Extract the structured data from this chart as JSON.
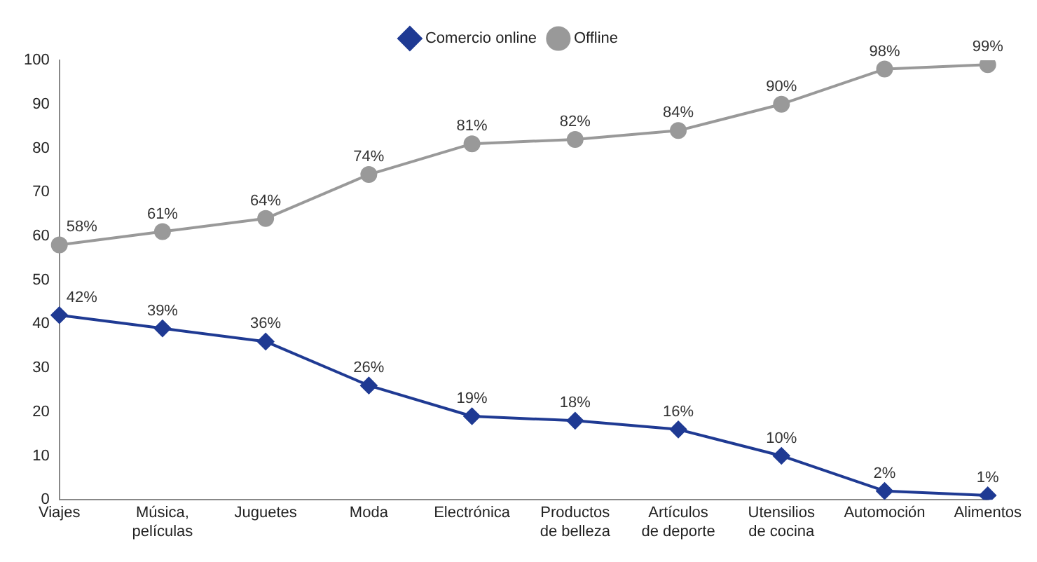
{
  "chart_data": {
    "type": "line",
    "categories": [
      "Viajes",
      "Música, películas",
      "Juguetes",
      "Moda",
      "Electrónica",
      "Productos de belleza",
      "Artículos de deporte",
      "Utensilios de cocina",
      "Automoción",
      "Alimentos"
    ],
    "series": [
      {
        "name": "Comercio online",
        "color": "#1f3a93",
        "marker": "diamond",
        "values": [
          42,
          39,
          36,
          26,
          19,
          18,
          16,
          10,
          2,
          1
        ],
        "value_labels": [
          "42%",
          "39%",
          "36%",
          "26%",
          "19%",
          "18%",
          "16%",
          "10%",
          "2%",
          "1%"
        ]
      },
      {
        "name": "Offline",
        "color": "#999999",
        "marker": "circle",
        "values": [
          58,
          61,
          64,
          74,
          81,
          82,
          84,
          90,
          98,
          99
        ],
        "value_labels": [
          "58%",
          "61%",
          "64%",
          "74%",
          "81%",
          "82%",
          "84%",
          "90%",
          "98%",
          "99%"
        ]
      }
    ],
    "ylim": [
      0,
      100
    ],
    "yticks": [
      0,
      10,
      20,
      30,
      40,
      50,
      60,
      70,
      80,
      90,
      100
    ],
    "grid": false,
    "legend": "top",
    "line_style": "solid"
  }
}
